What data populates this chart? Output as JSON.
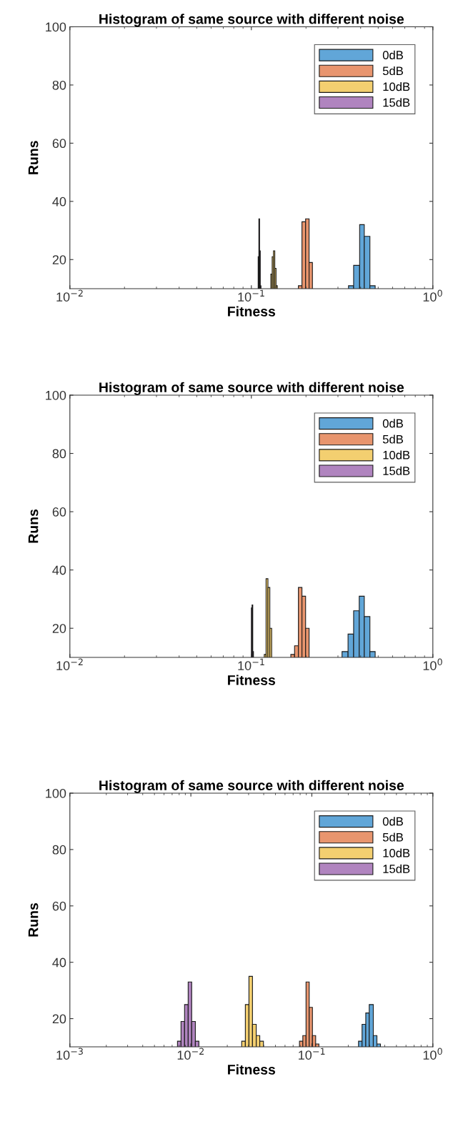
{
  "chart_data": [
    {
      "type": "histogram",
      "title": "Histogram of same source with different noise",
      "xlabel": "Fitness",
      "ylabel": "Runs",
      "log": "x",
      "xlim": [
        0.01,
        1
      ],
      "xticks": [
        {
          "value": 0.01,
          "label": "10$^{−2}$"
        },
        {
          "value": 0.1,
          "label": "10$^{−1}$"
        },
        {
          "value": 1,
          "label": "10$^{0}$"
        }
      ],
      "ylim": [
        10,
        100
      ],
      "yticks": [
        20,
        40,
        60,
        80,
        100
      ],
      "legend": "top right",
      "bins": [
        0.109,
        0.11,
        0.111,
        0.112,
        0.113,
        0.128,
        0.1302,
        0.1324,
        0.1346,
        0.1368,
        0.139,
        0.1816,
        0.19,
        0.199,
        0.208,
        0.217,
        0.343,
        0.366,
        0.395,
        0.419,
        0.45,
        0.481
      ],
      "series": [
        {
          "name": "0dB",
          "color": "#61a6d8",
          "values": [
            null,
            null,
            null,
            null,
            null,
            null,
            null,
            null,
            null,
            null,
            null,
            null,
            null,
            null,
            null,
            null,
            11,
            18,
            32,
            28,
            11
          ]
        },
        {
          "name": "5dB",
          "color": "#e8956e",
          "values": [
            null,
            null,
            null,
            null,
            null,
            null,
            null,
            null,
            null,
            null,
            null,
            11,
            33,
            34,
            19,
            null,
            null,
            null,
            null,
            null,
            null
          ]
        },
        {
          "name": "10dB",
          "color": "#f3cf70",
          "values": [
            null,
            null,
            null,
            null,
            null,
            15,
            21,
            23,
            17,
            11,
            null,
            null,
            null,
            null,
            null,
            null,
            null,
            null,
            null,
            null,
            null
          ]
        },
        {
          "name": "15dB",
          "color": "#b084bf",
          "values": [
            21,
            34,
            23,
            11,
            null,
            null,
            null,
            null,
            null,
            null,
            null,
            null,
            null,
            null,
            null,
            null,
            null,
            null,
            null,
            null,
            null
          ]
        }
      ]
    },
    {
      "type": "histogram",
      "title": "Histogram of same source with different noise",
      "xlabel": "Fitness",
      "ylabel": "Runs",
      "log": "x",
      "xlim": [
        0.01,
        1
      ],
      "xticks": [
        {
          "value": 0.01,
          "label": "10$^{−2}$"
        },
        {
          "value": 0.1,
          "label": "10$^{−1}$"
        },
        {
          "value": 1,
          "label": "10$^{0}$"
        }
      ],
      "ylim": [
        10,
        100
      ],
      "yticks": [
        20,
        40,
        60,
        80,
        100
      ],
      "legend": "top right",
      "bins": [
        0.1,
        0.1009,
        0.1018,
        0.1027,
        0.1178,
        0.1205,
        0.1234,
        0.1264,
        0.1294,
        0.165,
        0.173,
        0.1816,
        0.19,
        0.199,
        0.208,
        0.316,
        0.341,
        0.366,
        0.393,
        0.419,
        0.45,
        0.481
      ],
      "series": [
        {
          "name": "0dB",
          "color": "#61a6d8",
          "values": [
            null,
            null,
            null,
            null,
            null,
            null,
            null,
            null,
            null,
            null,
            null,
            null,
            null,
            null,
            null,
            12,
            18,
            26,
            31,
            24,
            12
          ]
        },
        {
          "name": "5dB",
          "color": "#e8956e",
          "values": [
            null,
            null,
            null,
            null,
            null,
            null,
            null,
            null,
            null,
            11,
            14,
            34,
            31,
            20,
            null,
            null,
            null,
            null,
            null,
            null,
            null
          ]
        },
        {
          "name": "10dB",
          "color": "#f3cf70",
          "values": [
            null,
            null,
            null,
            null,
            11,
            37,
            34,
            20,
            null,
            null,
            null,
            null,
            null,
            null,
            null,
            null,
            null,
            null,
            null,
            null,
            null
          ]
        },
        {
          "name": "15dB",
          "color": "#b084bf",
          "values": [
            27,
            28,
            12,
            null,
            null,
            null,
            null,
            null,
            null,
            null,
            null,
            null,
            null,
            null,
            null,
            null,
            null,
            null,
            null,
            null,
            null
          ]
        }
      ]
    },
    {
      "type": "histogram",
      "title": "Histogram of same source with different noise",
      "xlabel": "Fitness",
      "ylabel": "Runs",
      "log": "x",
      "xlim": [
        0.001,
        1
      ],
      "xticks": [
        {
          "value": 0.001,
          "label": "10$^{−3}$"
        },
        {
          "value": 0.01,
          "label": "10$^{−2}$"
        },
        {
          "value": 0.1,
          "label": "10$^{−1}$"
        },
        {
          "value": 1,
          "label": "10$^{0}$"
        }
      ],
      "ylim": [
        10,
        100
      ],
      "yticks": [
        20,
        40,
        60,
        80,
        100
      ],
      "legend": "top right",
      "bins": [
        0.00775,
        0.00829,
        0.00887,
        0.0095,
        0.01016,
        0.01089,
        0.01165,
        0.0263,
        0.0282,
        0.0302,
        0.0323,
        0.0347,
        0.0371,
        0.0398,
        0.079,
        0.0842,
        0.0895,
        0.0951,
        0.1011,
        0.1075,
        0.1143,
        0.243,
        0.26,
        0.279,
        0.298,
        0.322,
        0.345,
        0.369
      ],
      "series": [
        {
          "name": "0dB",
          "color": "#61a6d8",
          "values": [
            null,
            null,
            null,
            null,
            null,
            null,
            null,
            null,
            null,
            null,
            null,
            null,
            null,
            null,
            null,
            null,
            null,
            null,
            null,
            null,
            null,
            12,
            18,
            22,
            25,
            14,
            11
          ]
        },
        {
          "name": "5dB",
          "color": "#e8956e",
          "values": [
            null,
            null,
            null,
            null,
            null,
            null,
            null,
            null,
            null,
            null,
            null,
            null,
            null,
            null,
            12,
            14,
            33,
            24,
            14,
            11,
            null,
            null,
            null,
            null,
            null,
            null,
            null
          ]
        },
        {
          "name": "10dB",
          "color": "#f3cf70",
          "values": [
            null,
            null,
            null,
            null,
            null,
            null,
            null,
            12,
            25,
            35,
            18,
            14,
            12,
            null,
            null,
            null,
            null,
            null,
            null,
            null,
            null,
            null,
            null,
            null,
            null,
            null,
            null
          ]
        },
        {
          "name": "15dB",
          "color": "#b084bf",
          "values": [
            12,
            19,
            25,
            33,
            19,
            12,
            null,
            null,
            null,
            null,
            null,
            null,
            null,
            null,
            null,
            null,
            null,
            null,
            null,
            null,
            null,
            null,
            null,
            null,
            null,
            null,
            null
          ]
        }
      ]
    }
  ]
}
